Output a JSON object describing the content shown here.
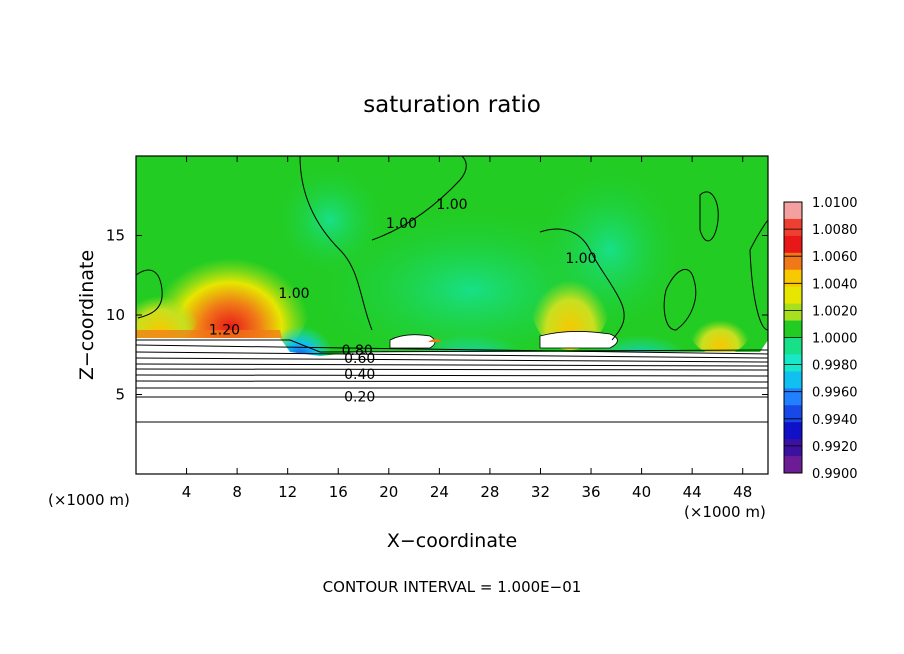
{
  "chart_data": {
    "type": "heatmap",
    "title": "saturation ratio",
    "xlabel": "X−coordinate",
    "ylabel": "Z−coordinate",
    "x_unit": "(×1000 m)",
    "y_unit": "(×1000 m)",
    "xlim": [
      0,
      50
    ],
    "ylim": [
      0,
      20
    ],
    "x_ticks": [
      4,
      8,
      12,
      16,
      20,
      24,
      28,
      32,
      36,
      40,
      44,
      48
    ],
    "y_ticks": [
      5,
      10,
      15
    ],
    "x_tick_labels": [
      "4",
      "8",
      "12",
      "16",
      "20",
      "24",
      "28",
      "32",
      "36",
      "40",
      "44",
      "48"
    ],
    "y_tick_labels": [
      "5",
      "10",
      "15"
    ],
    "colorbar": {
      "labels": [
        "1.0100",
        "1.0080",
        "1.0060",
        "1.0040",
        "1.0020",
        "1.0000",
        "0.9980",
        "0.9960",
        "0.9940",
        "0.9920",
        "0.9900"
      ],
      "colors": [
        "#f4a0a0",
        "#ee4030",
        "#e81818",
        "#f07818",
        "#f8c800",
        "#e6e600",
        "#a8e020",
        "#22cc22",
        "#18e088",
        "#18e8c8",
        "#10c0f0",
        "#2080ff",
        "#1848e8",
        "#1010c8",
        "#3c10a0",
        "#6c1c94"
      ]
    },
    "contour_labels": [
      {
        "text": "1.20",
        "x": 7,
        "z": 8.9
      },
      {
        "text": "1.00",
        "x": 12.5,
        "z": 11.2
      },
      {
        "text": "1.00",
        "x": 21,
        "z": 15.6
      },
      {
        "text": "1.00",
        "x": 25,
        "z": 16.8
      },
      {
        "text": "1.00",
        "x": 35.2,
        "z": 13.4
      },
      {
        "text": "0.80",
        "x": 17.5,
        "z": 7.6
      },
      {
        "text": "0.60",
        "x": 17.7,
        "z": 7.1
      },
      {
        "text": "0.40",
        "x": 17.7,
        "z": 6.1
      },
      {
        "text": "0.20",
        "x": 17.7,
        "z": 4.7
      }
    ],
    "contour_interval_text": "CONTOUR INTERVAL = 1.000E−01"
  }
}
